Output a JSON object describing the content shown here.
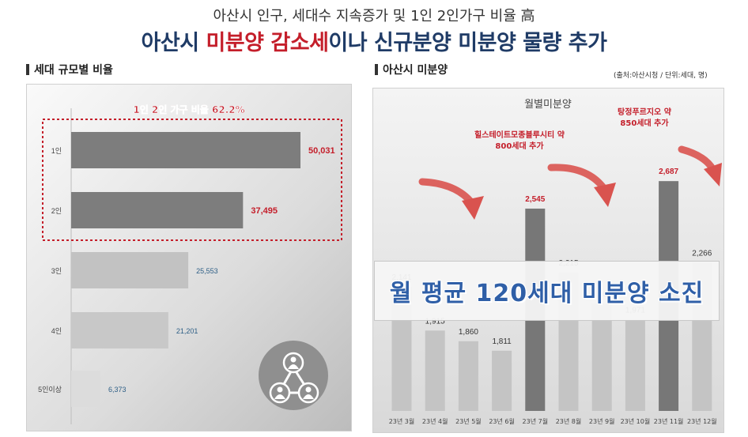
{
  "header": {
    "subtitle": "아산시 인구, 세대수 지속증가 및 1인 2인가구 비율 高",
    "headline_part1": "아산시 ",
    "headline_highlight": "미분양 감소세",
    "headline_part2": "이나 신규분양 미분양 물량 추가"
  },
  "left_section": {
    "title": "세대 규모별 비율"
  },
  "right_section": {
    "title": "아산시 미분양",
    "source_note": "(출처:아산시청 / 단위:세대, 명)"
  },
  "colors": {
    "accent_red": "#c41e2a",
    "navy": "#1f3b66",
    "bar_dark": "#7a7a7a",
    "bar_light": "#c4c4c4",
    "value_blue": "#2e5f86"
  },
  "chart_data": [
    {
      "type": "bar",
      "orientation": "horizontal",
      "categories": [
        "1인",
        "2인",
        "3인",
        "4인",
        "5인이상"
      ],
      "values": [
        50031,
        37495,
        25553,
        21201,
        6373
      ],
      "value_labels": [
        "50,031",
        "37,495",
        "25,553",
        "21,201",
        "6,373"
      ],
      "annotation": "1인 2인 가구 비율 62.2%",
      "xlim": [
        0,
        60000
      ],
      "grid": false,
      "icon": "people-network-icon"
    },
    {
      "type": "bar",
      "title": "월별미분양",
      "categories": [
        "23년 3월",
        "23년 4월",
        "23년 5월",
        "23년 6월",
        "23년 7월",
        "23년 8월",
        "23년 9월",
        "23년 10월",
        "23년 11월",
        "23년 12월"
      ],
      "values": [
        2141,
        1915,
        1860,
        1811,
        2545,
        2215,
        2055,
        1971,
        2687,
        2266
      ],
      "value_labels": [
        "2,141",
        "1,915",
        "1,860",
        "1,811",
        "2,545",
        "2,215",
        "2,055",
        "1,971",
        "2,687",
        "2,266"
      ],
      "highlighted": [
        4,
        8
      ],
      "ylim": [
        0,
        2900
      ],
      "annotations": [
        "힐스테이트모종블루시티 약 800세대 추가",
        "탕정푸르지오 약 850세대 추가"
      ],
      "banner": "월 평균 120세대 미분양 소진",
      "grid": false
    }
  ]
}
